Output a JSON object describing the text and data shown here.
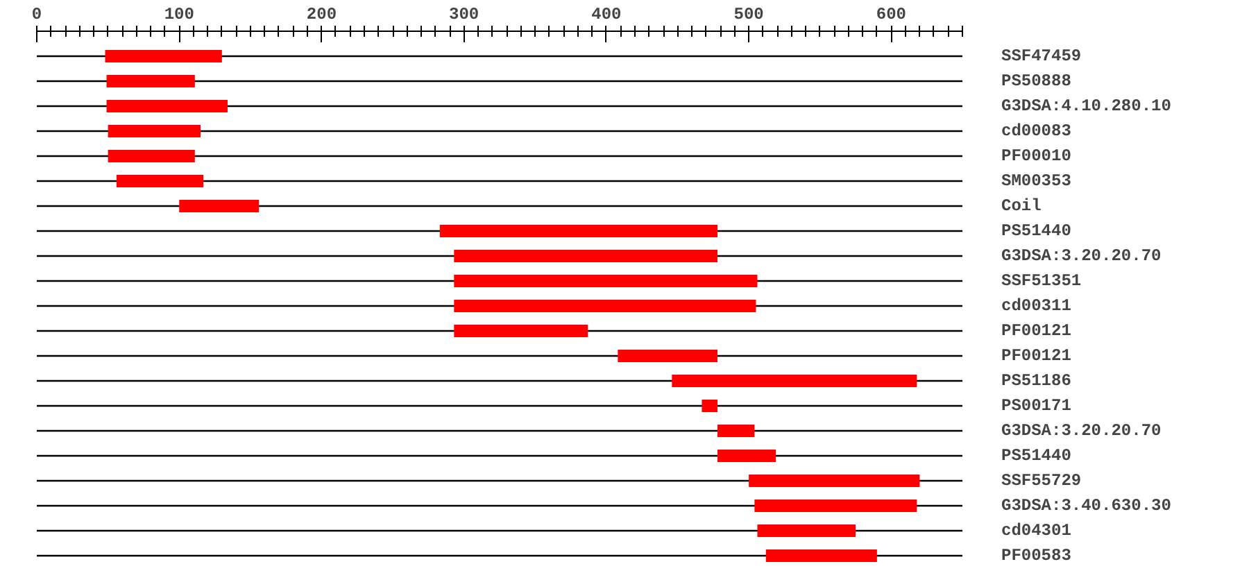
{
  "chart_data": {
    "type": "bar",
    "orientation": "horizontal",
    "color": "#ff0000",
    "categories": [
      "SSF47459",
      "PS50888",
      "G3DSA:4.10.280.10",
      "cd00083",
      "PF00010",
      "SM00353",
      "Coil",
      "PS51440",
      "G3DSA:3.20.20.70",
      "SSF51351",
      "cd00311",
      "PF00121",
      "PF00121",
      "PS51186",
      "PS00171",
      "G3DSA:3.20.20.70",
      "PS51440",
      "SSF55729",
      "G3DSA:3.40.630.30",
      "cd04301",
      "PF00583"
    ],
    "base": [
      48,
      49,
      49,
      50,
      50,
      56,
      100,
      283,
      293,
      293,
      293,
      293,
      408,
      446,
      467,
      478,
      478,
      500,
      504,
      506,
      512
    ],
    "values": [
      82,
      62,
      85,
      65,
      61,
      61,
      56,
      195,
      185,
      213,
      212,
      94,
      70,
      172,
      11,
      26,
      41,
      120,
      114,
      69,
      78
    ],
    "xlim": [
      0,
      650
    ],
    "xticks": [
      0,
      {
        "value": 10,
        "label": null
      },
      {
        "value": 20,
        "label": null
      },
      {
        "value": 30,
        "label": null
      },
      {
        "value": 40,
        "label": null
      },
      {
        "value": 50,
        "label": null
      },
      {
        "value": 60,
        "label": null
      },
      {
        "value": 70,
        "label": null
      },
      {
        "value": 80,
        "label": null
      },
      {
        "value": 90,
        "label": null
      },
      100,
      {
        "value": 110,
        "label": null
      },
      {
        "value": 120,
        "label": null
      },
      {
        "value": 130,
        "label": null
      },
      {
        "value": 140,
        "label": null
      },
      {
        "value": 150,
        "label": null
      },
      {
        "value": 160,
        "label": null
      },
      {
        "value": 170,
        "label": null
      },
      {
        "value": 180,
        "label": null
      },
      {
        "value": 190,
        "label": null
      },
      200,
      {
        "value": 210,
        "label": null
      },
      {
        "value": 220,
        "label": null
      },
      {
        "value": 230,
        "label": null
      },
      {
        "value": 240,
        "label": null
      },
      {
        "value": 250,
        "label": null
      },
      {
        "value": 260,
        "label": null
      },
      {
        "value": 270,
        "label": null
      },
      {
        "value": 280,
        "label": null
      },
      {
        "value": 290,
        "label": null
      },
      300,
      {
        "value": 310,
        "label": null
      },
      {
        "value": 320,
        "label": null
      },
      {
        "value": 330,
        "label": null
      },
      {
        "value": 340,
        "label": null
      },
      {
        "value": 350,
        "label": null
      },
      {
        "value": 360,
        "label": null
      },
      {
        "value": 370,
        "label": null
      },
      {
        "value": 380,
        "label": null
      },
      {
        "value": 390,
        "label": null
      },
      400,
      {
        "value": 410,
        "label": null
      },
      {
        "value": 420,
        "label": null
      },
      {
        "value": 430,
        "label": null
      },
      {
        "value": 440,
        "label": null
      },
      {
        "value": 450,
        "label": null
      },
      {
        "value": 460,
        "label": null
      },
      {
        "value": 470,
        "label": null
      },
      {
        "value": 480,
        "label": null
      },
      {
        "value": 490,
        "label": null
      },
      500,
      {
        "value": 510,
        "label": null
      },
      {
        "value": 520,
        "label": null
      },
      {
        "value": 530,
        "label": null
      },
      {
        "value": 540,
        "label": null
      },
      {
        "value": 550,
        "label": null
      },
      {
        "value": 560,
        "label": null
      },
      {
        "value": 570,
        "label": null
      },
      {
        "value": 580,
        "label": null
      },
      {
        "value": 590,
        "label": null
      },
      600,
      {
        "value": 610,
        "label": null
      },
      {
        "value": 620,
        "label": null
      },
      {
        "value": 630,
        "label": null
      },
      {
        "value": 640,
        "label": null
      },
      {
        "value": 650,
        "label": null
      }
    ],
    "grid": "y"
  }
}
